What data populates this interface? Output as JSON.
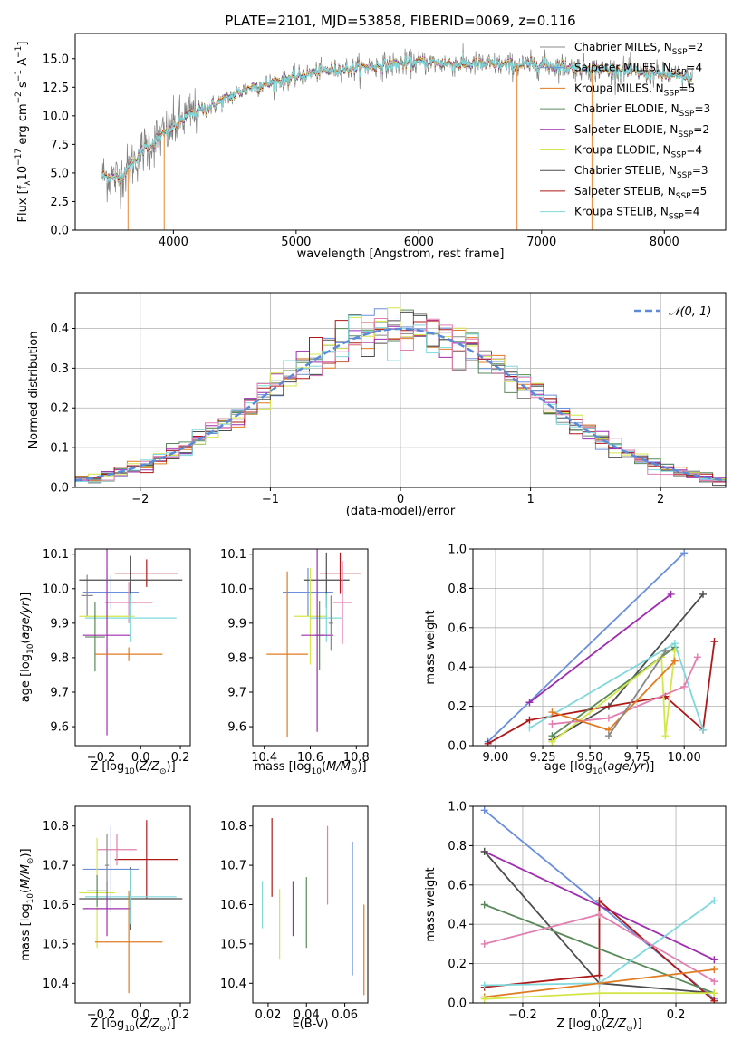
{
  "title": "PLATE=2101, MJD=53858, FIBERID=0069, z=0.116",
  "colors": {
    "Chabrier MILES": "#888888",
    "Salpeter MILES": "#6a8fdc",
    "Kroupa MILES": "#e07b20",
    "Chabrier ELODIE": "#5a8a5a",
    "Salpeter ELODIE": "#a02cb0",
    "Kroupa ELODIE": "#d4e64a",
    "Chabrier STELIB": "#4d4d4d",
    "Salpeter STELIB": "#b01818",
    "Kroupa STELIB": "#7fd8dc",
    "pink": "#e27fb0",
    "normal": "#5a8ad8"
  },
  "chart_data": [
    {
      "type": "line",
      "panel": "spectrum",
      "xlabel": "wavelength [Angstrom, rest frame]",
      "ylabel": "Flux [f_λ10^-17 erg cm^-2 s^-1 A^-1]",
      "xlim": [
        3200,
        8500
      ],
      "ylim": [
        0,
        17.2
      ],
      "xticks": [
        4000,
        5000,
        6000,
        7000,
        8000
      ],
      "yticks": [
        0.0,
        2.5,
        5.0,
        7.5,
        10.0,
        12.5,
        15.0
      ],
      "legend": [
        {
          "label": "Chabrier MILES, N_SSP=2",
          "key": "Chabrier MILES"
        },
        {
          "label": "Salpeter MILES, N_SSP=4",
          "key": "Salpeter MILES"
        },
        {
          "label": "Kroupa MILES, N_SSP=5",
          "key": "Kroupa MILES"
        },
        {
          "label": "Chabrier ELODIE, N_SSP=3",
          "key": "Chabrier ELODIE"
        },
        {
          "label": "Salpeter ELODIE, N_SSP=2",
          "key": "Salpeter ELODIE"
        },
        {
          "label": "Kroupa ELODIE, N_SSP=4",
          "key": "Kroupa ELODIE"
        },
        {
          "label": "Chabrier STELIB, N_SSP=3",
          "key": "Chabrier STELIB"
        },
        {
          "label": "Salpeter STELIB, N_SSP=5",
          "key": "Salpeter STELIB"
        },
        {
          "label": "Kroupa STELIB, N_SSP=4",
          "key": "Kroupa STELIB"
        }
      ],
      "legend_position": "right",
      "continuum": [
        [
          3420,
          4.8
        ],
        [
          3550,
          4.5
        ],
        [
          3650,
          5.6
        ],
        [
          3750,
          7.0
        ],
        [
          3850,
          7.8
        ],
        [
          3950,
          8.6
        ],
        [
          4050,
          9.5
        ],
        [
          4150,
          10.2
        ],
        [
          4300,
          10.8
        ],
        [
          4450,
          11.6
        ],
        [
          4600,
          12.4
        ],
        [
          4800,
          12.9
        ],
        [
          5000,
          13.4
        ],
        [
          5200,
          13.9
        ],
        [
          5400,
          14.1
        ],
        [
          5600,
          14.3
        ],
        [
          5800,
          14.5
        ],
        [
          6000,
          14.7
        ],
        [
          6200,
          14.6
        ],
        [
          6400,
          14.5
        ],
        [
          6600,
          14.5
        ],
        [
          6800,
          14.4
        ],
        [
          7000,
          14.5
        ],
        [
          7200,
          14.3
        ],
        [
          7400,
          14.1
        ],
        [
          7600,
          14.0
        ],
        [
          7800,
          13.8
        ],
        [
          8000,
          13.6
        ],
        [
          8230,
          13.3
        ]
      ],
      "dips": [
        [
          3630,
          0
        ],
        [
          3925,
          0
        ],
        [
          6800,
          0
        ],
        [
          7410,
          0
        ]
      ]
    },
    {
      "type": "line",
      "panel": "residual histogram",
      "xlabel": "(data-model)/error",
      "ylabel": "Normed distribution",
      "xlim": [
        -2.5,
        2.5
      ],
      "ylim": [
        0,
        0.49
      ],
      "xticks": [
        -2,
        -1,
        0,
        1,
        2
      ],
      "yticks": [
        0.0,
        0.1,
        0.2,
        0.3,
        0.4
      ],
      "grid": true,
      "legend": "𝒩(0, 1)",
      "legend_position": "top-right",
      "bins": 50,
      "normal_curve": {
        "mean": 0,
        "sigma": 1
      }
    },
    {
      "type": "scatter",
      "panel": "age vs metallicity",
      "xlabel": "Z [log10(Z/Z⊙)]",
      "ylabel": "age [log10(age/yr)]",
      "xlim": [
        -0.33,
        0.25
      ],
      "ylim": [
        9.545,
        10.115
      ],
      "xticks": [
        -0.2,
        0.0,
        0.2
      ],
      "yticks": [
        9.6,
        9.7,
        9.8,
        9.9,
        10.0,
        10.1
      ],
      "points": [
        {
          "key": "Salpeter MILES",
          "x": -0.15,
          "y": 9.99,
          "xerr": 0.14,
          "yerr": 0.05
        },
        {
          "key": "Chabrier MILES",
          "x": -0.27,
          "y": 9.98,
          "xerr": 0.03,
          "yerr": 0.06
        },
        {
          "key": "Chabrier STELIB",
          "x": -0.05,
          "y": 10.025,
          "xerr": 0.26,
          "yerr": 0.07
        },
        {
          "key": "Salpeter STELIB",
          "x": 0.03,
          "y": 10.045,
          "xerr": 0.16,
          "yerr": 0.04
        },
        {
          "key": "pink",
          "x": -0.06,
          "y": 9.96,
          "xerr": 0.12,
          "yerr": 0.06
        },
        {
          "key": "Kroupa ELODIE",
          "x": -0.17,
          "y": 9.92,
          "xerr": 0.14,
          "yerr": 0.04
        },
        {
          "key": "Kroupa STELIB",
          "x": -0.05,
          "y": 9.915,
          "xerr": 0.23,
          "yerr": 0.07
        },
        {
          "key": "Chabrier ELODIE",
          "x": -0.23,
          "y": 9.86,
          "xerr": 0.05,
          "yerr": 0.1
        },
        {
          "key": "Salpeter ELODIE",
          "x": -0.17,
          "y": 9.865,
          "xerr": 0.12,
          "yerr": 0.29
        },
        {
          "key": "Kroupa MILES",
          "x": -0.06,
          "y": 9.81,
          "xerr": 0.17,
          "yerr": 0.02
        }
      ]
    },
    {
      "type": "scatter",
      "panel": "age vs mass",
      "xlabel": "mass [log10(M/M⊙)]",
      "ylabel": "",
      "xlim": [
        10.35,
        10.85
      ],
      "ylim": [
        9.545,
        10.115
      ],
      "xticks": [
        10.4,
        10.6,
        10.8
      ],
      "yticks": [
        9.6,
        9.7,
        9.8,
        9.9,
        10.0,
        10.1
      ],
      "points": [
        {
          "key": "Salpeter MILES",
          "x": 10.59,
          "y": 9.99,
          "xerr": 0.11,
          "yerr": 0.07
        },
        {
          "key": "Chabrier STELIB",
          "x": 10.67,
          "y": 10.025,
          "xerr": 0.1,
          "yerr": 0.08
        },
        {
          "key": "Salpeter STELIB",
          "x": 10.73,
          "y": 10.045,
          "xerr": 0.09,
          "yerr": 0.06
        },
        {
          "key": "pink",
          "x": 10.74,
          "y": 9.96,
          "xerr": 0.04,
          "yerr": 0.12
        },
        {
          "key": "Kroupa ELODIE",
          "x": 10.6,
          "y": 9.92,
          "xerr": 0.07,
          "yerr": 0.14
        },
        {
          "key": "Kroupa STELIB",
          "x": 10.67,
          "y": 9.915,
          "xerr": 0.07,
          "yerr": 0.07
        },
        {
          "key": "Chabrier ELODIE",
          "x": 10.64,
          "y": 9.865,
          "xerr": 0.02,
          "yerr": 0.1
        },
        {
          "key": "Salpeter ELODIE",
          "x": 10.63,
          "y": 9.865,
          "xerr": 0.07,
          "yerr": 0.28
        },
        {
          "key": "Kroupa MILES",
          "x": 10.5,
          "y": 9.81,
          "xerr": 0.09,
          "yerr": 0.24
        },
        {
          "key": "Chabrier MILES",
          "x": 10.69,
          "y": 9.9,
          "xerr": 0.01,
          "yerr": 0.08
        }
      ]
    },
    {
      "type": "line",
      "panel": "mass weight vs age",
      "xlabel": "age [log10(age/yr)]",
      "ylabel": "mass weight",
      "xlim": [
        8.88,
        10.22
      ],
      "ylim": [
        0,
        1.0
      ],
      "xticks": [
        9.0,
        9.25,
        9.5,
        9.75,
        10.0
      ],
      "yticks": [
        0.0,
        0.2,
        0.4,
        0.6,
        0.8,
        1.0
      ],
      "grid": true,
      "series": [
        {
          "key": "Salpeter MILES",
          "points": [
            [
              8.96,
              0.02
            ],
            [
              10.0,
              0.98
            ]
          ]
        },
        {
          "key": "Salpeter ELODIE",
          "points": [
            [
              9.18,
              0.22
            ],
            [
              9.93,
              0.77
            ]
          ]
        },
        {
          "key": "Chabrier STELIB",
          "points": [
            [
              9.3,
              0.03
            ],
            [
              9.6,
              0.2
            ],
            [
              10.1,
              0.77
            ]
          ]
        },
        {
          "key": "Salpeter STELIB",
          "points": [
            [
              8.96,
              0.01
            ],
            [
              9.18,
              0.13
            ],
            [
              9.9,
              0.25
            ],
            [
              10.1,
              0.08
            ],
            [
              10.16,
              0.53
            ]
          ]
        },
        {
          "key": "Chabrier ELODIE",
          "points": [
            [
              9.3,
              0.05
            ],
            [
              9.95,
              0.5
            ]
          ]
        },
        {
          "key": "Kroupa ELODIE",
          "points": [
            [
              9.3,
              0.02
            ],
            [
              9.88,
              0.45
            ],
            [
              9.9,
              0.05
            ],
            [
              9.95,
              0.48
            ]
          ]
        },
        {
          "key": "Kroupa STELIB",
          "points": [
            [
              9.18,
              0.09
            ],
            [
              9.95,
              0.52
            ],
            [
              10.1,
              0.08
            ]
          ]
        },
        {
          "key": "pink",
          "points": [
            [
              9.3,
              0.11
            ],
            [
              9.6,
              0.14
            ],
            [
              10.0,
              0.3
            ],
            [
              10.07,
              0.45
            ]
          ]
        },
        {
          "key": "Kroupa MILES",
          "points": [
            [
              9.3,
              0.17
            ],
            [
              9.6,
              0.08
            ],
            [
              9.95,
              0.43
            ]
          ]
        },
        {
          "key": "Chabrier MILES",
          "points": [
            [
              9.6,
              0.05
            ],
            [
              9.9,
              0.48
            ]
          ]
        }
      ]
    },
    {
      "type": "scatter",
      "panel": "mass vs metallicity",
      "xlabel": "Z [log10(Z/Z⊙)]",
      "ylabel": "mass [log10(M/M⊙)]",
      "xlim": [
        -0.33,
        0.25
      ],
      "ylim": [
        10.35,
        10.85
      ],
      "xticks": [
        -0.2,
        0.0,
        0.2
      ],
      "yticks": [
        10.4,
        10.5,
        10.6,
        10.7,
        10.8
      ],
      "points": [
        {
          "key": "Salpeter STELIB",
          "x": 0.03,
          "y": 10.715,
          "xerr": 0.16,
          "yerr": 0.1
        },
        {
          "key": "pink",
          "x": -0.12,
          "y": 10.74,
          "xerr": 0.1,
          "yerr": 0.04
        },
        {
          "key": "Salpeter MILES",
          "x": -0.15,
          "y": 10.69,
          "xerr": 0.14,
          "yerr": 0.11
        },
        {
          "key": "Chabrier STELIB",
          "x": -0.05,
          "y": 10.615,
          "xerr": 0.26,
          "yerr": 0.08
        },
        {
          "key": "Kroupa STELIB",
          "x": -0.05,
          "y": 10.62,
          "xerr": 0.23,
          "yerr": 0.07
        },
        {
          "key": "Kroupa ELODIE",
          "x": -0.22,
          "y": 10.63,
          "xerr": 0.09,
          "yerr": 0.14
        },
        {
          "key": "Chabrier ELODIE",
          "x": -0.22,
          "y": 10.635,
          "xerr": 0.05,
          "yerr": 0.04
        },
        {
          "key": "Salpeter ELODIE",
          "x": -0.17,
          "y": 10.59,
          "xerr": 0.12,
          "yerr": 0.07
        },
        {
          "key": "Kroupa MILES",
          "x": -0.06,
          "y": 10.505,
          "xerr": 0.17,
          "yerr": 0.13
        },
        {
          "key": "Chabrier MILES",
          "x": -0.17,
          "y": 10.7,
          "xerr": 0.01,
          "yerr": 0.08
        }
      ]
    },
    {
      "type": "scatter",
      "panel": "mass vs E(B-V)",
      "xlabel": "E(B-V)",
      "ylabel": "",
      "xlim": [
        0.012,
        0.072
      ],
      "ylim": [
        10.35,
        10.85
      ],
      "xticks": [
        0.02,
        0.04,
        0.06
      ],
      "yticks": [
        10.4,
        10.5,
        10.6,
        10.7,
        10.8
      ],
      "points": [
        {
          "key": "Kroupa STELIB",
          "x": 0.017,
          "y": 10.6,
          "yerr": 0.06
        },
        {
          "key": "Salpeter STELIB",
          "x": 0.022,
          "y": 10.72,
          "yerr": 0.1
        },
        {
          "key": "Kroupa ELODIE",
          "x": 0.026,
          "y": 10.55,
          "yerr": 0.09
        },
        {
          "key": "Salpeter ELODIE",
          "x": 0.033,
          "y": 10.59,
          "yerr": 0.07
        },
        {
          "key": "Chabrier ELODIE",
          "x": 0.04,
          "y": 10.58,
          "yerr": 0.09
        },
        {
          "key": "pink",
          "x": 0.051,
          "y": 10.7,
          "yerr": 0.1
        },
        {
          "key": "Salpeter MILES",
          "x": 0.064,
          "y": 10.59,
          "yerr": 0.17
        },
        {
          "key": "Kroupa MILES",
          "x": 0.07,
          "y": 10.485,
          "yerr": 0.115
        }
      ]
    },
    {
      "type": "line",
      "panel": "mass weight vs metallicity",
      "xlabel": "Z [log10(Z/Z⊙)]",
      "ylabel": "mass weight",
      "xlim": [
        -0.33,
        0.33
      ],
      "ylim": [
        0,
        1.0
      ],
      "xticks": [
        -0.2,
        0.0,
        0.2
      ],
      "yticks": [
        0.0,
        0.2,
        0.4,
        0.6,
        0.8,
        1.0
      ],
      "grid": true,
      "series": [
        {
          "key": "Salpeter MILES",
          "points": [
            [
              -0.3,
              0.98
            ],
            [
              0.3,
              0.02
            ]
          ]
        },
        {
          "key": "Salpeter ELODIE",
          "points": [
            [
              -0.3,
              0.77
            ],
            [
              0.3,
              0.22
            ]
          ]
        },
        {
          "key": "Chabrier STELIB",
          "points": [
            [
              -0.3,
              0.77
            ],
            [
              0.0,
              0.1
            ],
            [
              0.3,
              0.05
            ]
          ]
        },
        {
          "key": "Salpeter STELIB",
          "points": [
            [
              -0.3,
              0.08
            ],
            [
              0.0,
              0.14
            ],
            [
              0.0,
              0.52
            ],
            [
              0.3,
              0.01
            ]
          ]
        },
        {
          "key": "Chabrier ELODIE",
          "points": [
            [
              -0.3,
              0.5
            ],
            [
              0.3,
              0.05
            ]
          ]
        },
        {
          "key": "Kroupa STELIB",
          "points": [
            [
              -0.3,
              0.09
            ],
            [
              0.0,
              0.1
            ],
            [
              0.3,
              0.52
            ]
          ]
        },
        {
          "key": "pink",
          "points": [
            [
              -0.3,
              0.3
            ],
            [
              0.0,
              0.45
            ],
            [
              0.3,
              0.11
            ]
          ]
        },
        {
          "key": "Kroupa MILES",
          "points": [
            [
              -0.3,
              0.03
            ],
            [
              0.3,
              0.17
            ]
          ]
        },
        {
          "key": "Kroupa ELODIE",
          "points": [
            [
              -0.3,
              0.02
            ],
            [
              0.0,
              0.05
            ],
            [
              0.3,
              0.05
            ]
          ]
        }
      ]
    }
  ]
}
